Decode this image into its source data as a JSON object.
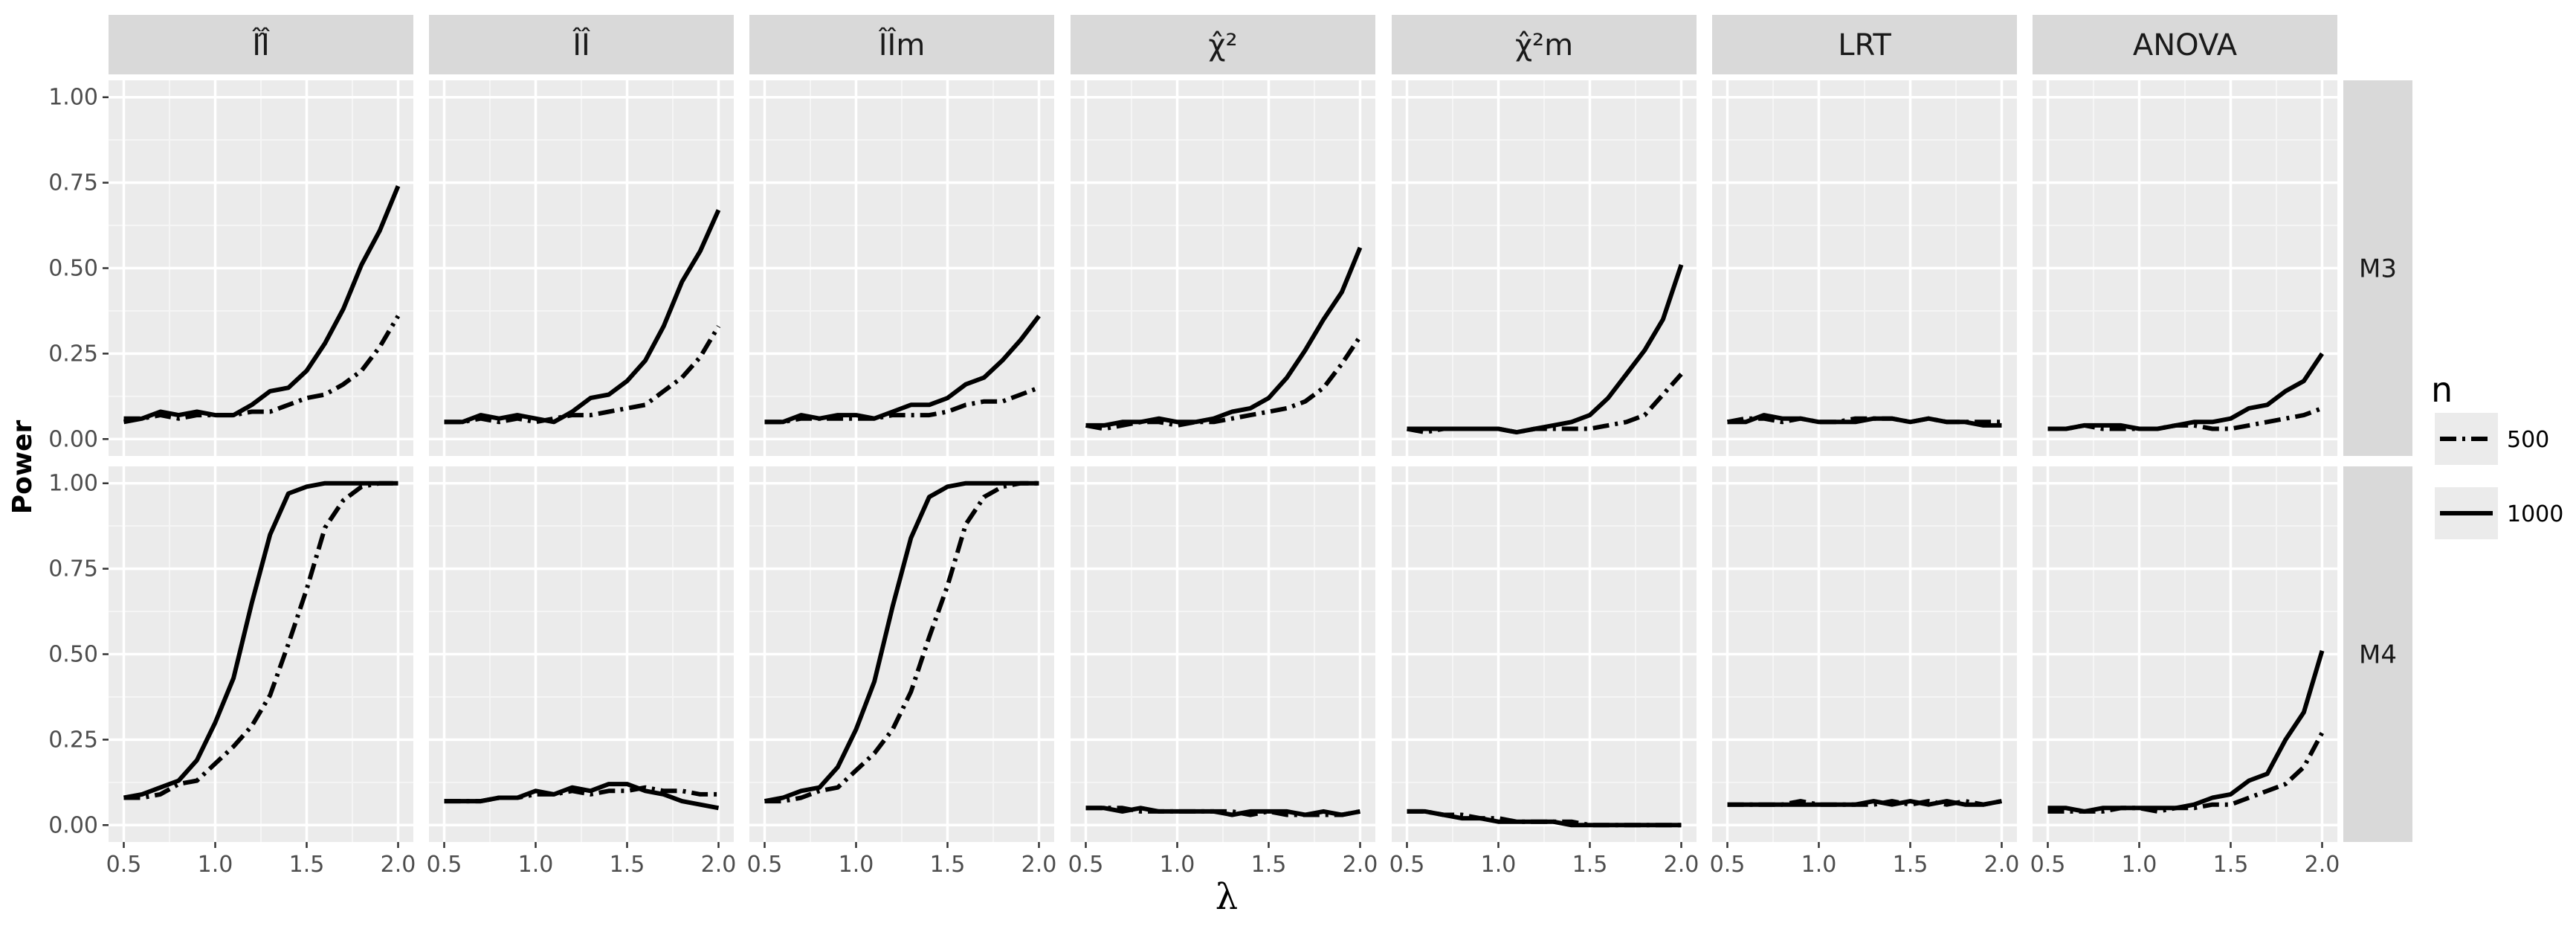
{
  "chart_data": {
    "type": "line",
    "xlabel": "λ",
    "ylabel": "Power",
    "xlim": [
      0.5,
      2.0
    ],
    "ylim": [
      0,
      1
    ],
    "x_ticks": [
      "0.5",
      "1.0",
      "1.5",
      "2.0"
    ],
    "y_ticks": [
      "0.00",
      "0.25",
      "0.50",
      "0.75",
      "1.00"
    ],
    "legend": {
      "title": "n",
      "entries": [
        "500",
        "1000"
      ],
      "position": "right"
    },
    "columns": [
      "II-hat-hat",
      "II-hat",
      "II-hat-m",
      "chi-sq-hat",
      "chi-sq-hat-m",
      "LRT",
      "ANOVA"
    ],
    "column_labels": [
      "ÎÎ̂",
      "ÎÎ",
      "ÎÎm",
      "χ̂²",
      "χ̂²m",
      "LRT",
      "ANOVA"
    ],
    "rows": [
      "M3",
      "M4"
    ],
    "x": [
      0.5,
      0.6,
      0.7,
      0.8,
      0.9,
      1.0,
      1.1,
      1.2,
      1.3,
      1.4,
      1.5,
      1.6,
      1.7,
      1.8,
      1.9,
      2.0
    ],
    "panels": [
      {
        "row": "M3",
        "col": "ÎÎ̂",
        "series": [
          {
            "name": "500",
            "values": [
              0.06,
              0.06,
              0.07,
              0.06,
              0.07,
              0.07,
              0.07,
              0.08,
              0.08,
              0.1,
              0.12,
              0.13,
              0.16,
              0.2,
              0.27,
              0.36
            ]
          },
          {
            "name": "1000",
            "values": [
              0.05,
              0.06,
              0.08,
              0.07,
              0.08,
              0.07,
              0.07,
              0.1,
              0.14,
              0.15,
              0.2,
              0.28,
              0.38,
              0.51,
              0.61,
              0.74
            ]
          }
        ]
      },
      {
        "row": "M3",
        "col": "ÎÎ",
        "series": [
          {
            "name": "500",
            "values": [
              0.05,
              0.05,
              0.06,
              0.05,
              0.06,
              0.05,
              0.06,
              0.07,
              0.07,
              0.08,
              0.09,
              0.1,
              0.14,
              0.18,
              0.24,
              0.33
            ]
          },
          {
            "name": "1000",
            "values": [
              0.05,
              0.05,
              0.07,
              0.06,
              0.07,
              0.06,
              0.05,
              0.08,
              0.12,
              0.13,
              0.17,
              0.23,
              0.33,
              0.46,
              0.55,
              0.67
            ]
          }
        ]
      },
      {
        "row": "M3",
        "col": "ÎÎm",
        "series": [
          {
            "name": "500",
            "values": [
              0.05,
              0.05,
              0.06,
              0.06,
              0.06,
              0.06,
              0.06,
              0.07,
              0.07,
              0.07,
              0.08,
              0.1,
              0.11,
              0.11,
              0.13,
              0.15
            ]
          },
          {
            "name": "1000",
            "values": [
              0.05,
              0.05,
              0.07,
              0.06,
              0.07,
              0.07,
              0.06,
              0.08,
              0.1,
              0.1,
              0.12,
              0.16,
              0.18,
              0.23,
              0.29,
              0.36
            ]
          }
        ]
      },
      {
        "row": "M3",
        "col": "χ̂²",
        "series": [
          {
            "name": "500",
            "values": [
              0.04,
              0.03,
              0.04,
              0.05,
              0.05,
              0.04,
              0.05,
              0.05,
              0.06,
              0.07,
              0.08,
              0.09,
              0.11,
              0.15,
              0.22,
              0.3
            ]
          },
          {
            "name": "1000",
            "values": [
              0.04,
              0.04,
              0.05,
              0.05,
              0.06,
              0.05,
              0.05,
              0.06,
              0.08,
              0.09,
              0.12,
              0.18,
              0.26,
              0.35,
              0.43,
              0.56
            ]
          }
        ]
      },
      {
        "row": "M3",
        "col": "χ̂²m",
        "series": [
          {
            "name": "500",
            "values": [
              0.03,
              0.02,
              0.03,
              0.03,
              0.03,
              0.03,
              0.02,
              0.03,
              0.03,
              0.03,
              0.03,
              0.04,
              0.05,
              0.07,
              0.13,
              0.19
            ]
          },
          {
            "name": "1000",
            "values": [
              0.03,
              0.03,
              0.03,
              0.03,
              0.03,
              0.03,
              0.02,
              0.03,
              0.04,
              0.05,
              0.07,
              0.12,
              0.19,
              0.26,
              0.35,
              0.51
            ]
          }
        ]
      },
      {
        "row": "M3",
        "col": "LRT",
        "series": [
          {
            "name": "500",
            "values": [
              0.05,
              0.06,
              0.06,
              0.05,
              0.06,
              0.05,
              0.05,
              0.06,
              0.06,
              0.06,
              0.05,
              0.06,
              0.05,
              0.05,
              0.05,
              0.05
            ]
          },
          {
            "name": "1000",
            "values": [
              0.05,
              0.05,
              0.07,
              0.06,
              0.06,
              0.05,
              0.05,
              0.05,
              0.06,
              0.06,
              0.05,
              0.06,
              0.05,
              0.05,
              0.04,
              0.04
            ]
          }
        ]
      },
      {
        "row": "M3",
        "col": "ANOVA",
        "series": [
          {
            "name": "500",
            "values": [
              0.03,
              0.03,
              0.04,
              0.03,
              0.03,
              0.03,
              0.03,
              0.04,
              0.04,
              0.03,
              0.03,
              0.04,
              0.05,
              0.06,
              0.07,
              0.09
            ]
          },
          {
            "name": "1000",
            "values": [
              0.03,
              0.03,
              0.04,
              0.04,
              0.04,
              0.03,
              0.03,
              0.04,
              0.05,
              0.05,
              0.06,
              0.09,
              0.1,
              0.14,
              0.17,
              0.25
            ]
          }
        ]
      },
      {
        "row": "M4",
        "col": "ÎÎ̂",
        "series": [
          {
            "name": "500",
            "values": [
              0.08,
              0.08,
              0.09,
              0.12,
              0.13,
              0.18,
              0.23,
              0.29,
              0.38,
              0.53,
              0.69,
              0.87,
              0.95,
              0.99,
              1.0,
              1.0
            ]
          },
          {
            "name": "1000",
            "values": [
              0.08,
              0.09,
              0.11,
              0.13,
              0.19,
              0.3,
              0.43,
              0.65,
              0.85,
              0.97,
              0.99,
              1.0,
              1.0,
              1.0,
              1.0,
              1.0
            ]
          }
        ]
      },
      {
        "row": "M4",
        "col": "ÎÎ",
        "series": [
          {
            "name": "500",
            "values": [
              0.07,
              0.07,
              0.07,
              0.08,
              0.08,
              0.09,
              0.09,
              0.1,
              0.09,
              0.1,
              0.1,
              0.11,
              0.1,
              0.1,
              0.09,
              0.09
            ]
          },
          {
            "name": "1000",
            "values": [
              0.07,
              0.07,
              0.07,
              0.08,
              0.08,
              0.1,
              0.09,
              0.11,
              0.1,
              0.12,
              0.12,
              0.1,
              0.09,
              0.07,
              0.06,
              0.05
            ]
          }
        ]
      },
      {
        "row": "M4",
        "col": "ÎÎm",
        "series": [
          {
            "name": "500",
            "values": [
              0.07,
              0.07,
              0.08,
              0.1,
              0.11,
              0.16,
              0.21,
              0.28,
              0.39,
              0.55,
              0.7,
              0.88,
              0.96,
              0.99,
              1.0,
              1.0
            ]
          },
          {
            "name": "1000",
            "values": [
              0.07,
              0.08,
              0.1,
              0.11,
              0.17,
              0.28,
              0.42,
              0.64,
              0.84,
              0.96,
              0.99,
              1.0,
              1.0,
              1.0,
              1.0,
              1.0
            ]
          }
        ]
      },
      {
        "row": "M4",
        "col": "χ̂²",
        "series": [
          {
            "name": "500",
            "values": [
              0.05,
              0.05,
              0.05,
              0.04,
              0.04,
              0.04,
              0.04,
              0.04,
              0.04,
              0.03,
              0.04,
              0.03,
              0.03,
              0.03,
              0.03,
              0.04
            ]
          },
          {
            "name": "1000",
            "values": [
              0.05,
              0.05,
              0.04,
              0.05,
              0.04,
              0.04,
              0.04,
              0.04,
              0.03,
              0.04,
              0.04,
              0.04,
              0.03,
              0.04,
              0.03,
              0.04
            ]
          }
        ]
      },
      {
        "row": "M4",
        "col": "χ̂²m",
        "series": [
          {
            "name": "500",
            "values": [
              0.04,
              0.04,
              0.03,
              0.03,
              0.02,
              0.02,
              0.01,
              0.01,
              0.01,
              0.01,
              0.0,
              0.0,
              0.0,
              0.0,
              0.0,
              0.0
            ]
          },
          {
            "name": "1000",
            "values": [
              0.04,
              0.04,
              0.03,
              0.02,
              0.02,
              0.01,
              0.01,
              0.01,
              0.01,
              0.0,
              0.0,
              0.0,
              0.0,
              0.0,
              0.0,
              0.0
            ]
          }
        ]
      },
      {
        "row": "M4",
        "col": "LRT",
        "series": [
          {
            "name": "500",
            "values": [
              0.06,
              0.06,
              0.06,
              0.06,
              0.07,
              0.06,
              0.06,
              0.06,
              0.06,
              0.07,
              0.06,
              0.07,
              0.06,
              0.07,
              0.06,
              0.07
            ]
          },
          {
            "name": "1000",
            "values": [
              0.06,
              0.06,
              0.06,
              0.06,
              0.06,
              0.06,
              0.06,
              0.06,
              0.07,
              0.06,
              0.07,
              0.06,
              0.07,
              0.06,
              0.06,
              0.07
            ]
          }
        ]
      },
      {
        "row": "M4",
        "col": "ANOVA",
        "series": [
          {
            "name": "500",
            "values": [
              0.04,
              0.04,
              0.04,
              0.04,
              0.05,
              0.05,
              0.04,
              0.05,
              0.05,
              0.06,
              0.06,
              0.08,
              0.1,
              0.12,
              0.17,
              0.27
            ]
          },
          {
            "name": "1000",
            "values": [
              0.05,
              0.05,
              0.04,
              0.05,
              0.05,
              0.05,
              0.05,
              0.05,
              0.06,
              0.08,
              0.09,
              0.13,
              0.15,
              0.25,
              0.33,
              0.51
            ]
          }
        ]
      }
    ]
  }
}
